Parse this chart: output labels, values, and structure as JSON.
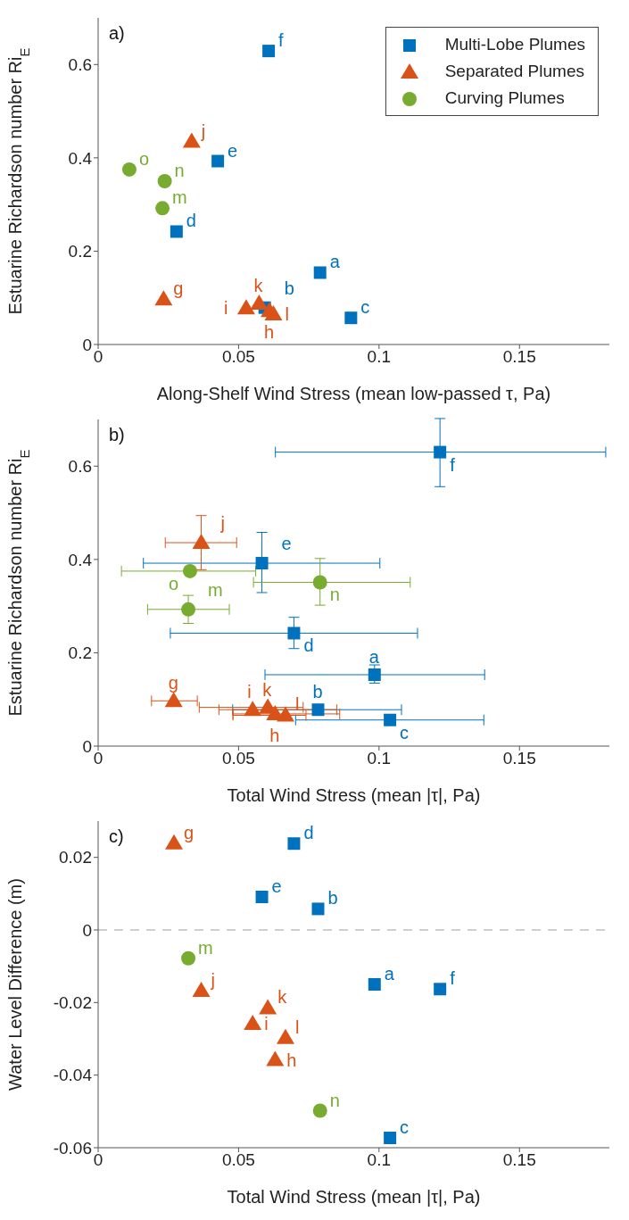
{
  "chart_data": [
    {
      "type": "scatter",
      "xlabel": "Along-Shelf Wind Stress (mean low-passed τ, Pa)",
      "ylabel": "Estuarine Richardson number Ri$_{E}$",
      "xlim": [
        0,
        0.182
      ],
      "xticks": [
        0,
        0.05,
        0.1,
        0.15
      ],
      "ylim": [
        0,
        0.7
      ],
      "yticks": [
        0,
        0.2,
        0.4,
        0.6
      ],
      "legend": "top right",
      "series": [
        {
          "name": "Multi-Lobe Plumes",
          "color": "#0072bd",
          "marker": "square",
          "x": [
            0.079,
            0.0593,
            0.09,
            0.0279,
            0.0426,
            0.0607
          ],
          "values": [
            0.154,
            0.079,
            0.057,
            0.242,
            0.393,
            0.629
          ]
        },
        {
          "name": "Separated Plumes",
          "color": "#d95319",
          "marker": "triangle",
          "x": [
            0.0233,
            0.061,
            0.0527,
            0.0333,
            0.0573,
            0.0624
          ],
          "values": [
            0.097,
            0.072,
            0.078,
            0.435,
            0.088,
            0.065
          ]
        },
        {
          "name": "Curving Plumes",
          "color": "#77ac30",
          "marker": "circle",
          "x": [
            0.0229,
            0.0237,
            0.0111
          ],
          "values": [
            0.292,
            0.35,
            0.375
          ]
        }
      ],
      "annotations": [
        "a)",
        {
          "text": "a",
          "x": 0.079,
          "y": 0.154
        },
        {
          "text": "b",
          "x": 0.0593,
          "y": 0.079
        },
        {
          "text": "c",
          "x": 0.09,
          "y": 0.057
        },
        {
          "text": "d",
          "x": 0.0279,
          "y": 0.242
        },
        {
          "text": "e",
          "x": 0.0426,
          "y": 0.393
        },
        {
          "text": "f",
          "x": 0.0607,
          "y": 0.629
        },
        {
          "text": "g",
          "x": 0.0233,
          "y": 0.097
        },
        {
          "text": "h",
          "x": 0.061,
          "y": 0.072
        },
        {
          "text": "i",
          "x": 0.0527,
          "y": 0.078
        },
        {
          "text": "j",
          "x": 0.0333,
          "y": 0.435
        },
        {
          "text": "k",
          "x": 0.0573,
          "y": 0.088
        },
        {
          "text": "l",
          "x": 0.0624,
          "y": 0.065
        },
        {
          "text": "m",
          "x": 0.0229,
          "y": 0.292
        },
        {
          "text": "n",
          "x": 0.0237,
          "y": 0.35
        },
        {
          "text": "o",
          "x": 0.0111,
          "y": 0.375
        }
      ]
    },
    {
      "type": "scatter",
      "xlabel": "Total Wind Stress (mean |τ|, Pa)",
      "ylabel": "Estuarine Richardson number Ri$_{E}$",
      "xlim": [
        0,
        0.182
      ],
      "xticks": [
        0,
        0.05,
        0.1,
        0.15
      ],
      "ylim": [
        0,
        0.7
      ],
      "yticks": [
        0,
        0.2,
        0.4,
        0.6
      ],
      "series": [
        {
          "color": "#0072bd",
          "marker": "square",
          "x": [
            0.0984,
            0.0783,
            0.1039,
            0.0697,
            0.0583,
            0.1217
          ],
          "values": [
            0.153,
            0.078,
            0.056,
            0.242,
            0.392,
            0.63
          ],
          "errors": [
            [
              0.135,
              0.174
            ],
            null,
            null,
            [
              0.209,
              0.276
            ],
            [
              0.329,
              0.458
            ],
            [
              0.556,
              0.702
            ]
          ],
          "xerrors": [
            [
              0.0594,
              0.1376
            ],
            [
              0.0479,
              0.108
            ],
            [
              0.0703,
              0.1373
            ],
            [
              0.0257,
              0.1137
            ],
            [
              0.0161,
              0.1003
            ],
            [
              0.0631,
              0.1807
            ]
          ]
        },
        {
          "color": "#d95319",
          "marker": "triangle",
          "x": [
            0.0269,
            0.063,
            0.055,
            0.0367,
            0.0604,
            0.0667
          ],
          "values": [
            0.097,
            0.069,
            0.078,
            0.436,
            0.083,
            0.066
          ],
          "errors": [
            null,
            null,
            null,
            [
              0.378,
              0.494
            ],
            null,
            null
          ],
          "xerrors": [
            [
              0.019,
              0.0353
            ],
            [
              0.048,
              0.086
            ],
            [
              0.043,
              0.085
            ],
            [
              0.0239,
              0.0493
            ],
            [
              0.036,
              0.073
            ],
            [
              0.048,
              0.074
            ]
          ]
        },
        {
          "color": "#77ac30",
          "marker": "circle",
          "x": [
            0.0321,
            0.079,
            0.0327
          ],
          "values": [
            0.293,
            0.351,
            0.375
          ],
          "errors": [
            [
              0.263,
              0.323
            ],
            [
              0.302,
              0.402
            ],
            null
          ],
          "xerrors": [
            [
              0.0176,
              0.0467
            ],
            [
              0.0553,
              0.1111
            ],
            [
              0.0083,
              0.0561
            ]
          ]
        }
      ],
      "annotations": [
        "b)",
        {
          "text": "a",
          "x": 0.0984,
          "y": 0.153
        },
        {
          "text": "b",
          "x": 0.0783,
          "y": 0.078
        },
        {
          "text": "c",
          "x": 0.1039,
          "y": 0.056
        },
        {
          "text": "d",
          "x": 0.0697,
          "y": 0.242
        },
        {
          "text": "e",
          "x": 0.0583,
          "y": 0.392
        },
        {
          "text": "f",
          "x": 0.1217,
          "y": 0.63
        },
        {
          "text": "g",
          "x": 0.0269,
          "y": 0.097
        },
        {
          "text": "h",
          "x": 0.063,
          "y": 0.069
        },
        {
          "text": "i",
          "x": 0.055,
          "y": 0.078
        },
        {
          "text": "j",
          "x": 0.0367,
          "y": 0.436
        },
        {
          "text": "k",
          "x": 0.0604,
          "y": 0.083
        },
        {
          "text": "l",
          "x": 0.0667,
          "y": 0.066
        },
        {
          "text": "m",
          "x": 0.0321,
          "y": 0.293
        },
        {
          "text": "n",
          "x": 0.079,
          "y": 0.351
        },
        {
          "text": "o",
          "x": 0.0327,
          "y": 0.375
        }
      ]
    },
    {
      "type": "scatter",
      "xlabel": "Total Wind Stress (mean |τ|, Pa)",
      "ylabel": "Water Level Difference (m)",
      "xlim": [
        0,
        0.182
      ],
      "xticks": [
        0,
        0.05,
        0.1,
        0.15
      ],
      "ylim": [
        -0.06,
        0.03
      ],
      "yticks": [
        -0.06,
        -0.04,
        -0.02,
        0,
        0.02
      ],
      "ref_lines": [
        {
          "axis": "y",
          "value": 0,
          "color": "#c0c0c0",
          "line_style": "dashed"
        }
      ],
      "series": [
        {
          "color": "#0072bd",
          "marker": "square",
          "x": [
            0.0984,
            0.0783,
            0.1039,
            0.0697,
            0.0583,
            0.1217
          ],
          "values": [
            -0.015,
            0.0058,
            -0.0573,
            0.0238,
            0.0091,
            -0.0163
          ]
        },
        {
          "color": "#d95319",
          "marker": "triangle",
          "x": [
            0.027,
            0.063,
            0.055,
            0.0367,
            0.0604,
            0.0667
          ],
          "values": [
            0.0239,
            -0.0358,
            -0.0258,
            -0.0167,
            -0.0215,
            -0.0297
          ]
        },
        {
          "color": "#77ac30",
          "marker": "circle",
          "x": [
            0.0321,
            0.079
          ],
          "values": [
            -0.0078,
            -0.0498
          ]
        }
      ],
      "annotations": [
        "c)",
        {
          "text": "a",
          "x": 0.0984,
          "y": -0.015
        },
        {
          "text": "b",
          "x": 0.0783,
          "y": 0.0058
        },
        {
          "text": "c",
          "x": 0.1039,
          "y": -0.0573
        },
        {
          "text": "d",
          "x": 0.0697,
          "y": 0.0238
        },
        {
          "text": "e",
          "x": 0.0583,
          "y": 0.0091
        },
        {
          "text": "f",
          "x": 0.1217,
          "y": -0.0163
        },
        {
          "text": "g",
          "x": 0.027,
          "y": 0.0239
        },
        {
          "text": "h",
          "x": 0.063,
          "y": -0.0358
        },
        {
          "text": "i",
          "x": 0.055,
          "y": -0.0258
        },
        {
          "text": "j",
          "x": 0.0367,
          "y": -0.0167
        },
        {
          "text": "k",
          "x": 0.0604,
          "y": -0.0215
        },
        {
          "text": "l",
          "x": 0.0667,
          "y": -0.0297
        },
        {
          "text": "m",
          "x": 0.0321,
          "y": -0.0078
        },
        {
          "text": "n",
          "x": 0.079,
          "y": -0.0498
        }
      ]
    }
  ]
}
